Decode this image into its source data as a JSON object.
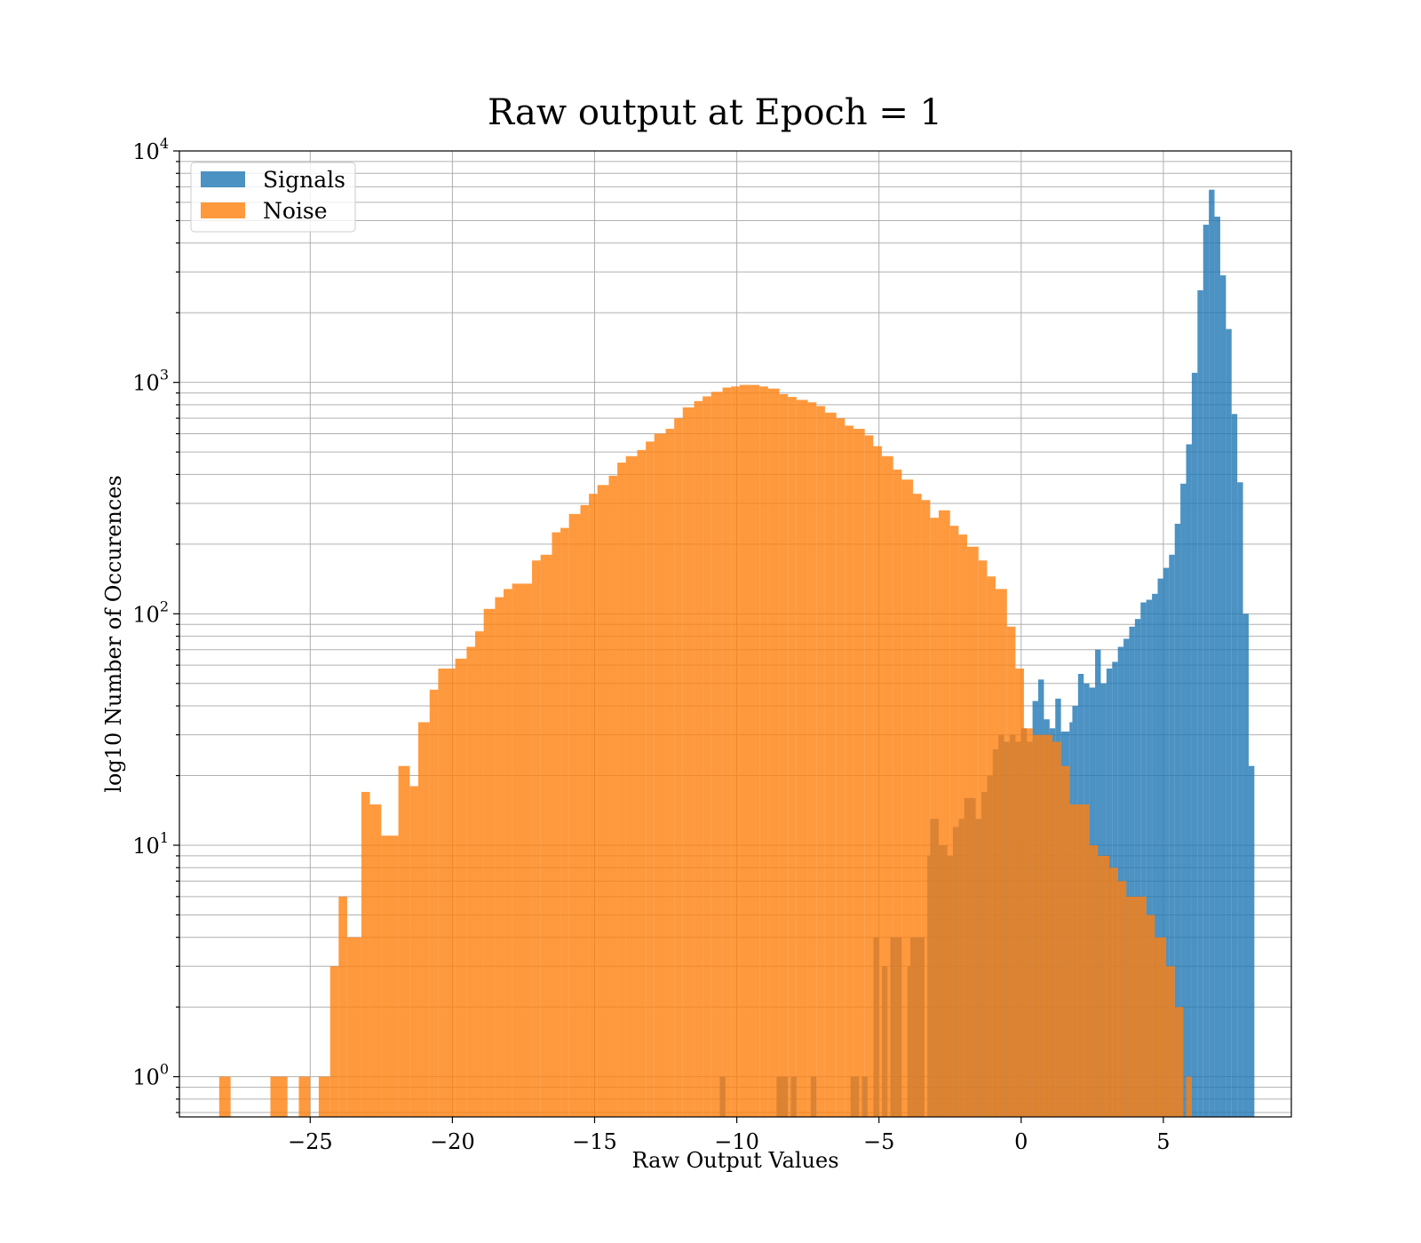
{
  "chart_data": {
    "type": "histogram",
    "title": "Raw output at Epoch = 1",
    "xlabel": "Raw Output Values",
    "ylabel": "log10 Number of Occurences",
    "x_scale": "linear",
    "y_scale": "log",
    "xlim": [
      -29.6,
      9.5
    ],
    "ylim": [
      0.67,
      10000
    ],
    "x_ticks": [
      -25,
      -20,
      -15,
      -10,
      -5,
      0,
      5
    ],
    "x_tick_labels": [
      "−25",
      "−20",
      "−15",
      "−10",
      "−5",
      "0",
      "5"
    ],
    "y_ticks": [
      1,
      10,
      100,
      1000,
      10000
    ],
    "y_tick_labels": [
      {
        "base": "10",
        "exp": "0"
      },
      {
        "base": "10",
        "exp": "1"
      },
      {
        "base": "10",
        "exp": "2"
      },
      {
        "base": "10",
        "exp": "3"
      },
      {
        "base": "10",
        "exp": "4"
      }
    ],
    "grid": true,
    "legend_position": "upper left",
    "series": [
      {
        "name": "Signals",
        "color": "#1f77b4",
        "opacity": 0.8,
        "bins": [
          [
            -10.6,
            -10.4,
            1
          ],
          [
            -8.6,
            -8.2,
            1
          ],
          [
            -8.1,
            -7.9,
            1
          ],
          [
            -7.4,
            -7.2,
            1
          ],
          [
            -6.0,
            -5.7,
            1
          ],
          [
            -5.6,
            -5.4,
            1
          ],
          [
            -5.2,
            -5.0,
            4
          ],
          [
            -4.9,
            -4.7,
            3
          ],
          [
            -4.6,
            -4.4,
            4
          ],
          [
            -4.4,
            -4.2,
            4
          ],
          [
            -4.0,
            -3.9,
            3
          ],
          [
            -3.9,
            -3.4,
            4
          ],
          [
            -3.3,
            -3.2,
            9
          ],
          [
            -3.2,
            -2.9,
            13
          ],
          [
            -2.9,
            -2.6,
            10
          ],
          [
            -2.6,
            -2.4,
            9
          ],
          [
            -2.4,
            -2.2,
            12
          ],
          [
            -2.2,
            -2.0,
            13
          ],
          [
            -2.0,
            -1.6,
            16
          ],
          [
            -1.6,
            -1.4,
            13
          ],
          [
            -1.4,
            -1.2,
            17
          ],
          [
            -1.2,
            -1.0,
            20
          ],
          [
            -1.0,
            -0.8,
            26
          ],
          [
            -0.8,
            -0.6,
            30
          ],
          [
            -0.6,
            -0.4,
            28
          ],
          [
            -0.4,
            -0.2,
            30
          ],
          [
            -0.2,
            0.0,
            28
          ],
          [
            0.0,
            0.2,
            32
          ],
          [
            0.2,
            0.4,
            28
          ],
          [
            0.4,
            0.6,
            42
          ],
          [
            0.6,
            0.8,
            52
          ],
          [
            0.8,
            1.0,
            35
          ],
          [
            1.0,
            1.2,
            32
          ],
          [
            1.2,
            1.4,
            43
          ],
          [
            1.4,
            1.7,
            31
          ],
          [
            1.7,
            1.8,
            34
          ],
          [
            1.8,
            2.0,
            40
          ],
          [
            2.0,
            2.2,
            55
          ],
          [
            2.2,
            2.4,
            50
          ],
          [
            2.4,
            2.6,
            48
          ],
          [
            2.6,
            2.8,
            70
          ],
          [
            2.8,
            3.0,
            50
          ],
          [
            3.0,
            3.2,
            58
          ],
          [
            3.2,
            3.4,
            62
          ],
          [
            3.4,
            3.6,
            72
          ],
          [
            3.6,
            3.8,
            78
          ],
          [
            3.8,
            4.0,
            88
          ],
          [
            4.0,
            4.2,
            95
          ],
          [
            4.2,
            4.4,
            112
          ],
          [
            4.4,
            4.6,
            115
          ],
          [
            4.6,
            4.8,
            122
          ],
          [
            4.8,
            5.0,
            142
          ],
          [
            5.0,
            5.2,
            158
          ],
          [
            5.2,
            5.4,
            180
          ],
          [
            5.4,
            5.6,
            245
          ],
          [
            5.6,
            5.8,
            365
          ],
          [
            5.8,
            6.0,
            540
          ],
          [
            6.0,
            6.2,
            1100
          ],
          [
            6.2,
            6.4,
            2500
          ],
          [
            6.4,
            6.6,
            4800
          ],
          [
            6.6,
            6.8,
            6800
          ],
          [
            6.8,
            7.0,
            5200
          ],
          [
            7.0,
            7.2,
            2900
          ],
          [
            7.2,
            7.4,
            1700
          ],
          [
            7.4,
            7.6,
            730
          ],
          [
            7.6,
            7.8,
            370
          ],
          [
            7.8,
            8.0,
            100
          ],
          [
            8.0,
            8.2,
            22
          ]
        ]
      },
      {
        "name": "Noise",
        "color": "#ff7f0e",
        "opacity": 0.8,
        "bins": [
          [
            -28.2,
            -27.8,
            1
          ],
          [
            -26.4,
            -25.8,
            1
          ],
          [
            -25.4,
            -25.0,
            1
          ],
          [
            -24.7,
            -24.3,
            1
          ],
          [
            -24.3,
            -24.0,
            3
          ],
          [
            -24.0,
            -23.7,
            6
          ],
          [
            -23.7,
            -23.2,
            4
          ],
          [
            -23.2,
            -22.9,
            17
          ],
          [
            -22.9,
            -22.5,
            15
          ],
          [
            -22.5,
            -21.9,
            11
          ],
          [
            -21.9,
            -21.5,
            22
          ],
          [
            -21.5,
            -21.2,
            18
          ],
          [
            -21.2,
            -20.8,
            34
          ],
          [
            -20.8,
            -20.5,
            47
          ],
          [
            -20.5,
            -19.9,
            58
          ],
          [
            -19.9,
            -19.5,
            64
          ],
          [
            -19.5,
            -19.2,
            72
          ],
          [
            -19.2,
            -18.9,
            84
          ],
          [
            -18.9,
            -18.5,
            105
          ],
          [
            -18.5,
            -18.2,
            118
          ],
          [
            -18.2,
            -17.9,
            128
          ],
          [
            -17.9,
            -17.2,
            135
          ],
          [
            -17.2,
            -16.9,
            170
          ],
          [
            -16.9,
            -16.5,
            180
          ],
          [
            -16.5,
            -16.2,
            225
          ],
          [
            -16.2,
            -15.9,
            235
          ],
          [
            -15.9,
            -15.5,
            270
          ],
          [
            -15.5,
            -15.2,
            295
          ],
          [
            -15.2,
            -14.9,
            330
          ],
          [
            -14.9,
            -14.5,
            360
          ],
          [
            -14.5,
            -14.2,
            395
          ],
          [
            -14.2,
            -13.9,
            450
          ],
          [
            -13.9,
            -13.5,
            480
          ],
          [
            -13.5,
            -13.2,
            510
          ],
          [
            -13.2,
            -12.9,
            555
          ],
          [
            -12.9,
            -12.5,
            600
          ],
          [
            -12.5,
            -12.2,
            630
          ],
          [
            -12.2,
            -11.9,
            700
          ],
          [
            -11.9,
            -11.5,
            780
          ],
          [
            -11.5,
            -11.2,
            830
          ],
          [
            -11.2,
            -10.9,
            870
          ],
          [
            -10.9,
            -10.5,
            910
          ],
          [
            -10.5,
            -10.2,
            950
          ],
          [
            -10.2,
            -9.9,
            960
          ],
          [
            -9.9,
            -9.2,
            975
          ],
          [
            -9.2,
            -8.9,
            960
          ],
          [
            -8.9,
            -8.5,
            940
          ],
          [
            -8.5,
            -8.2,
            890
          ],
          [
            -8.2,
            -7.9,
            865
          ],
          [
            -7.9,
            -7.5,
            840
          ],
          [
            -7.5,
            -7.2,
            820
          ],
          [
            -7.2,
            -6.9,
            790
          ],
          [
            -6.9,
            -6.5,
            740
          ],
          [
            -6.5,
            -6.2,
            700
          ],
          [
            -6.2,
            -5.9,
            650
          ],
          [
            -5.9,
            -5.5,
            630
          ],
          [
            -5.5,
            -5.2,
            590
          ],
          [
            -5.2,
            -4.9,
            530
          ],
          [
            -4.9,
            -4.5,
            480
          ],
          [
            -4.5,
            -4.2,
            420
          ],
          [
            -4.2,
            -3.8,
            380
          ],
          [
            -3.8,
            -3.5,
            330
          ],
          [
            -3.5,
            -3.2,
            310
          ],
          [
            -3.2,
            -2.9,
            260
          ],
          [
            -2.9,
            -2.5,
            280
          ],
          [
            -2.5,
            -2.2,
            240
          ],
          [
            -2.2,
            -1.9,
            220
          ],
          [
            -1.9,
            -1.5,
            195
          ],
          [
            -1.5,
            -1.2,
            170
          ],
          [
            -1.2,
            -0.9,
            145
          ],
          [
            -0.9,
            -0.5,
            128
          ],
          [
            -0.5,
            -0.2,
            88
          ],
          [
            -0.2,
            0.1,
            58
          ],
          [
            0.1,
            0.4,
            32
          ],
          [
            0.4,
            0.7,
            30
          ],
          [
            0.7,
            1.1,
            30
          ],
          [
            1.1,
            1.4,
            28
          ],
          [
            1.4,
            1.7,
            22
          ],
          [
            1.7,
            2.1,
            15
          ],
          [
            2.1,
            2.4,
            15
          ],
          [
            2.4,
            2.7,
            10
          ],
          [
            2.7,
            3.1,
            9
          ],
          [
            3.1,
            3.4,
            8
          ],
          [
            3.4,
            3.7,
            7
          ],
          [
            3.7,
            4.1,
            6
          ],
          [
            4.1,
            4.4,
            6
          ],
          [
            4.4,
            4.7,
            5
          ],
          [
            4.7,
            5.1,
            4
          ],
          [
            5.1,
            5.4,
            3
          ],
          [
            5.4,
            5.7,
            2
          ],
          [
            5.8,
            6.0,
            1
          ]
        ]
      }
    ]
  }
}
